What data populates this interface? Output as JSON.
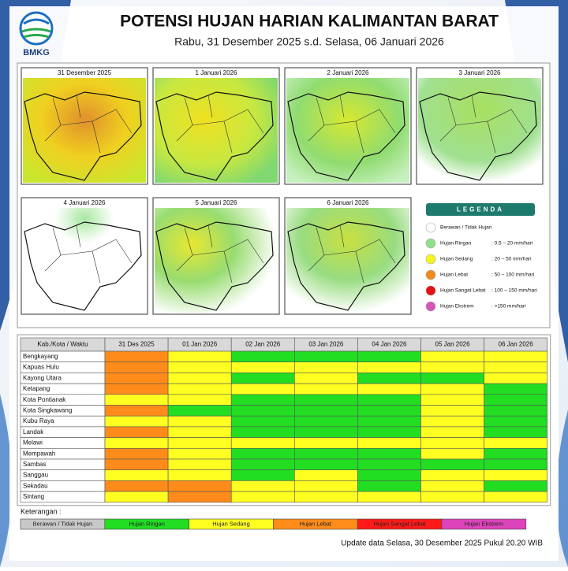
{
  "header": {
    "logo": "BMKG",
    "title": "POTENSI HUJAN HARIAN KALIMANTAN BARAT",
    "subtitle": "Rabu, 31 Desember 2025 s.d. Selasa, 06 Januari 2026"
  },
  "maps": [
    {
      "label": "31 Desember 2025"
    },
    {
      "label": "1 Januari 2026"
    },
    {
      "label": "2 Januari 2026"
    },
    {
      "label": "3 Januari 2026"
    },
    {
      "label": "4 Januari 2026"
    },
    {
      "label": "5 Januari 2026"
    },
    {
      "label": "6 Januari 2026"
    }
  ],
  "legend": {
    "title": "LEGENDA",
    "items": [
      {
        "name": "Berawan / Tidak Hujan",
        "range": "",
        "color": "#ffffff"
      },
      {
        "name": "Hujan Ringan",
        "range": ": 0.5 – 20 mm/hari",
        "color": "#8fe08a"
      },
      {
        "name": "Hujan Sedang",
        "range": ": 20 – 50 mm/hari",
        "color": "#f5f51e"
      },
      {
        "name": "Hujan Lebat",
        "range": ": 50 – 100 mm/hari",
        "color": "#f08a1c"
      },
      {
        "name": "Hujan Sangat Lebat",
        "range": ": 100 – 150 mm/hari",
        "color": "#e81010"
      },
      {
        "name": "Hujan Ekstrem",
        "range": ": >150 mm/hari",
        "color": "#d455b8"
      }
    ]
  },
  "table": {
    "header": [
      "Kab./Kota / Waktu",
      "31 Des 2025",
      "01 Jan 2026",
      "02 Jan 2026",
      "03 Jan 2026",
      "04 Jan 2026",
      "05 Jan 2026",
      "06 Jan 2026"
    ],
    "rows": [
      {
        "name": "Bengkayang",
        "levels": [
          3,
          2,
          1,
          1,
          1,
          2,
          2
        ]
      },
      {
        "name": "Kapuas Hulu",
        "levels": [
          3,
          2,
          2,
          2,
          2,
          2,
          2
        ]
      },
      {
        "name": "Kayong Utara",
        "levels": [
          3,
          2,
          1,
          2,
          1,
          1,
          2
        ]
      },
      {
        "name": "Ketapang",
        "levels": [
          3,
          2,
          2,
          2,
          2,
          2,
          1
        ]
      },
      {
        "name": "Kota Pontianak",
        "levels": [
          2,
          2,
          1,
          1,
          1,
          2,
          1
        ]
      },
      {
        "name": "Kota Singkawang",
        "levels": [
          3,
          1,
          1,
          1,
          1,
          2,
          1
        ]
      },
      {
        "name": "Kubu Raya",
        "levels": [
          2,
          2,
          1,
          1,
          1,
          2,
          1
        ]
      },
      {
        "name": "Landak",
        "levels": [
          3,
          2,
          1,
          1,
          1,
          2,
          1
        ]
      },
      {
        "name": "Melawi",
        "levels": [
          2,
          2,
          2,
          2,
          2,
          2,
          2
        ]
      },
      {
        "name": "Mempawah",
        "levels": [
          3,
          2,
          1,
          1,
          1,
          2,
          1
        ]
      },
      {
        "name": "Sambas",
        "levels": [
          3,
          2,
          1,
          1,
          1,
          1,
          1
        ]
      },
      {
        "name": "Sanggau",
        "levels": [
          2,
          2,
          1,
          2,
          1,
          2,
          2
        ]
      },
      {
        "name": "Sekadau",
        "levels": [
          3,
          3,
          2,
          2,
          1,
          2,
          1
        ]
      },
      {
        "name": "Sintang",
        "levels": [
          2,
          3,
          2,
          2,
          2,
          2,
          2
        ]
      }
    ]
  },
  "keterangan": {
    "title": "Keterangan :",
    "items": [
      {
        "name": "Berawan / Tidak Hujan",
        "color": "#c8c8c8"
      },
      {
        "name": "Hujan Ringan",
        "color": "#22dd22"
      },
      {
        "name": "Hujan Sedang",
        "color": "#ffff22"
      },
      {
        "name": "Hujan Lebat",
        "color": "#ff8c1a"
      },
      {
        "name": "Hujan Sangat Lebat",
        "color": "#ff1a1a"
      },
      {
        "name": "Hujan Ekstrem",
        "color": "#dd44bb"
      }
    ]
  },
  "footer": "Update data Selasa, 30 Desember 2025 Pukul 20.20 WIB"
}
